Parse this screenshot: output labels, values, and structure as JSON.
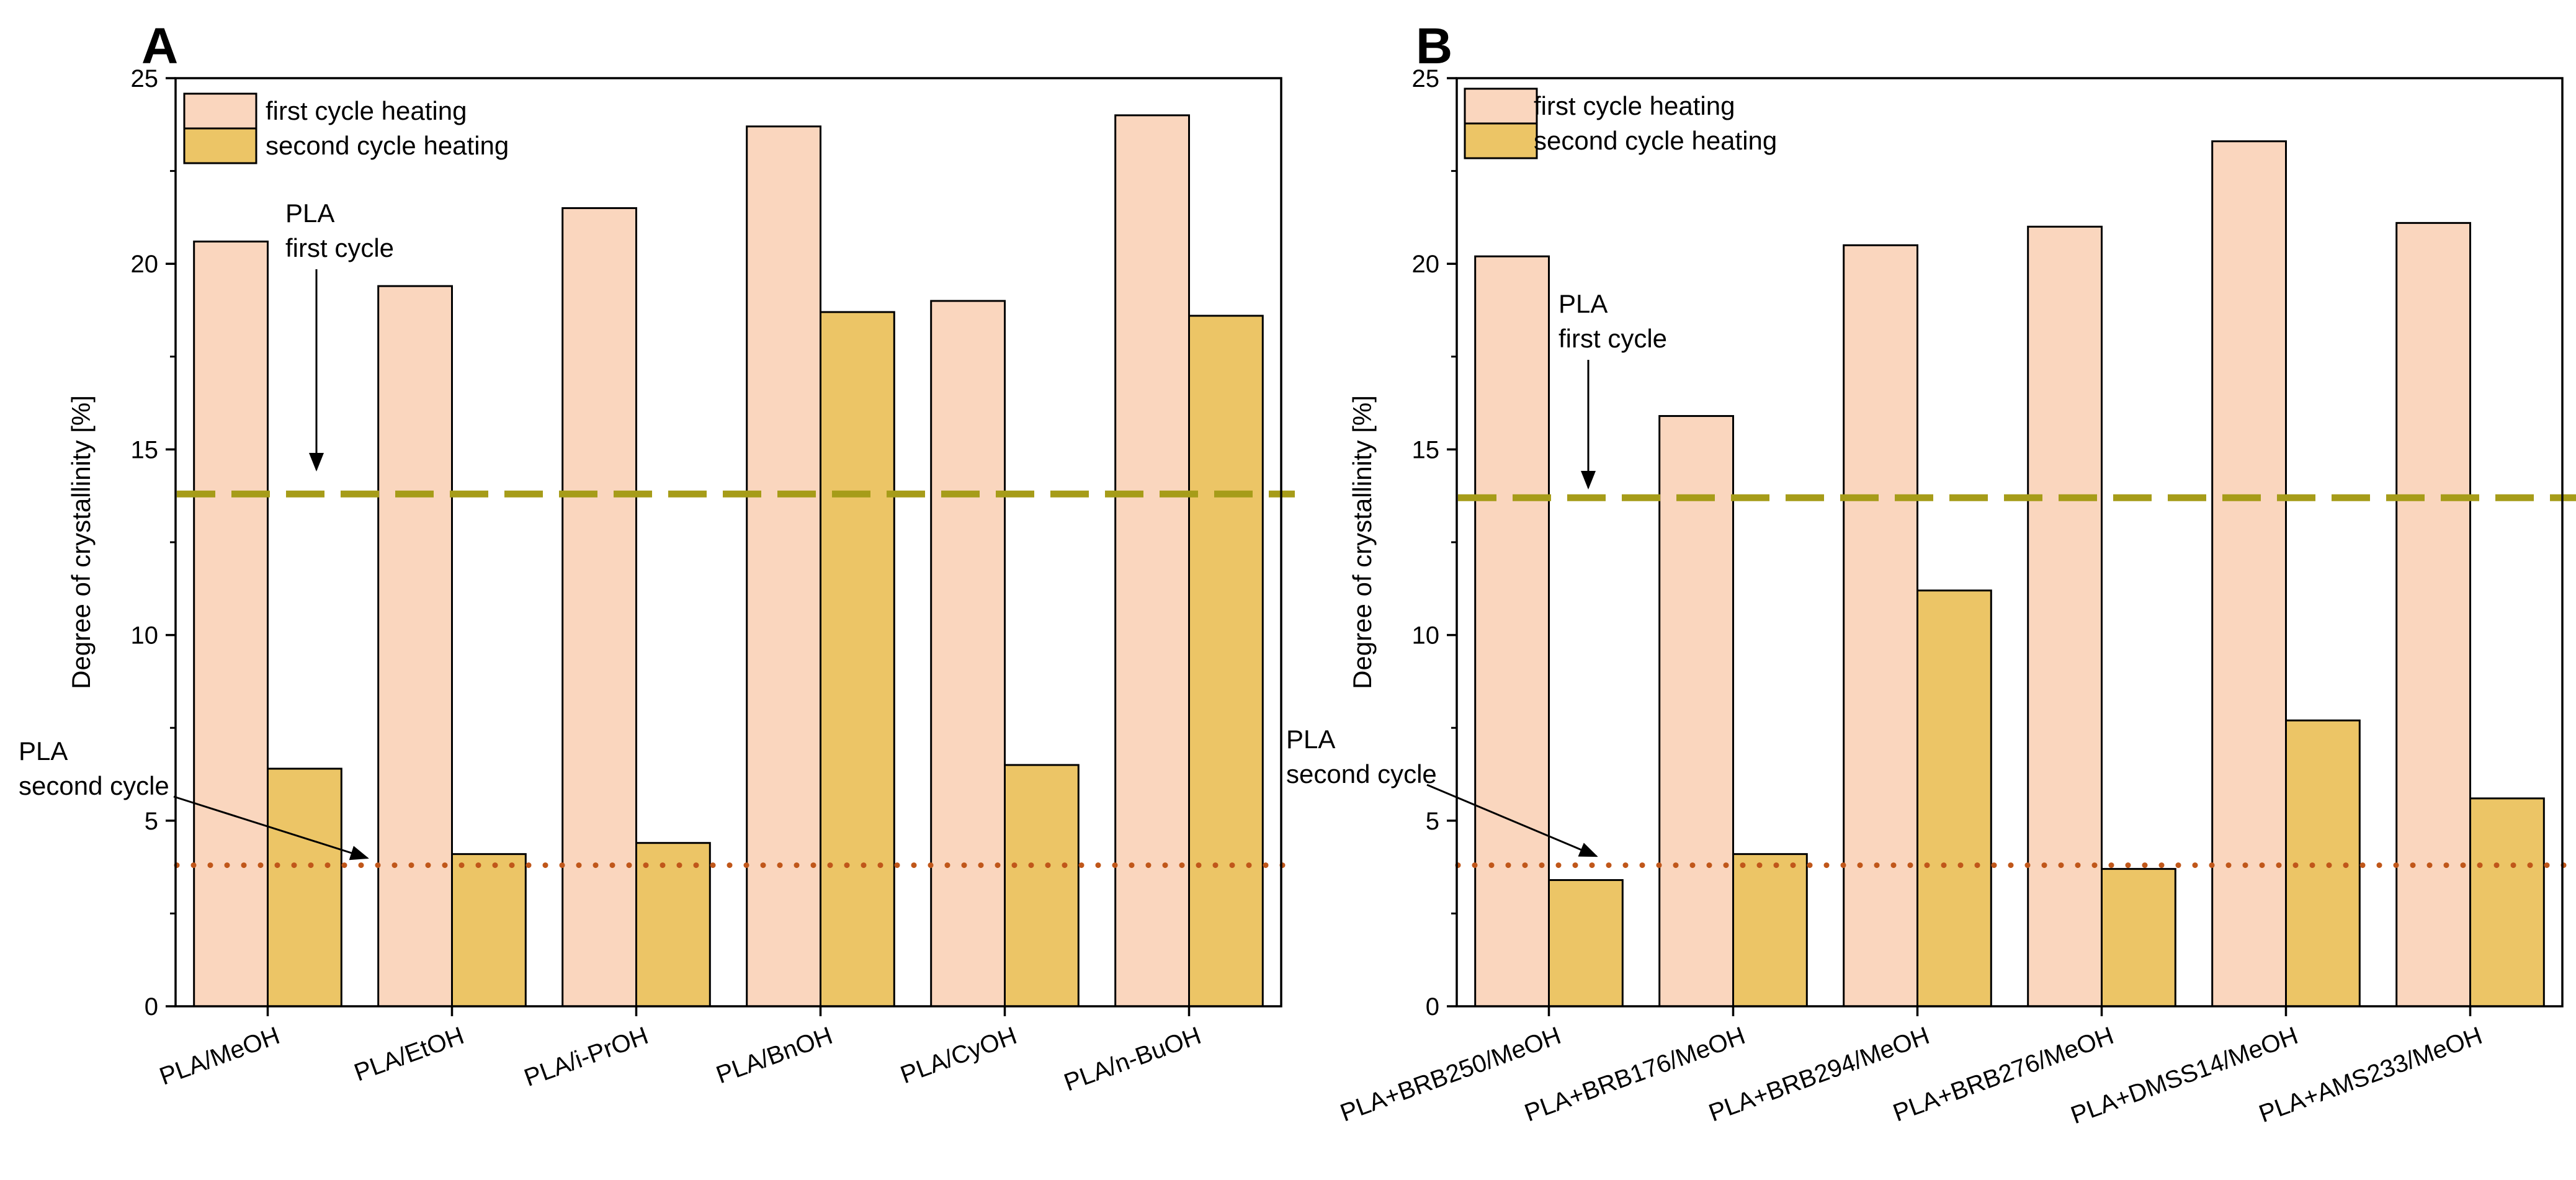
{
  "chart_data": [
    {
      "type": "bar",
      "panel_label": "A",
      "categories": [
        "PLA/MeOH",
        "PLA/EtOH",
        "PLA/i-PrOH",
        "PLA/BnOH",
        "PLA/CyOH",
        "PLA/n-BuOH"
      ],
      "series": [
        {
          "name": "first cycle heating",
          "color": "#FAD6BE",
          "values": [
            20.6,
            19.4,
            21.5,
            23.7,
            19.0,
            24.0
          ]
        },
        {
          "name": "second cycle heating",
          "color": "#ECC566",
          "values": [
            6.4,
            4.1,
            4.4,
            18.7,
            6.5,
            18.6
          ]
        }
      ],
      "ylabel": "Degree of crystallinity [%]",
      "ylim": [
        0,
        25
      ],
      "yticks": [
        "0",
        "5",
        "10",
        "15",
        "20",
        "25"
      ],
      "reference_lines": [
        {
          "name": "PLA first cycle",
          "value": 13.8,
          "style": "dashed",
          "color": "#A69C19"
        },
        {
          "name": "PLA second cycle",
          "value": 3.8,
          "style": "dotted",
          "color": "#C0571A"
        }
      ],
      "annotations": {
        "first": [
          "PLA",
          "first cycle"
        ],
        "second": [
          "PLA",
          "second cycle"
        ]
      },
      "legend_position": "top-left"
    },
    {
      "type": "bar",
      "panel_label": "B",
      "categories": [
        "PLA+BRB250/MeOH",
        "PLA+BRB176/MeOH",
        "PLA+BRB294/MeOH",
        "PLA+BRB276/MeOH",
        "PLA+DMSS14/MeOH",
        "PLA+AMS233/MeOH"
      ],
      "series": [
        {
          "name": "first cycle heating",
          "color": "#FAD6BE",
          "values": [
            20.2,
            15.9,
            20.5,
            21.0,
            23.3,
            21.1
          ]
        },
        {
          "name": "second cycle heating",
          "color": "#ECC566",
          "values": [
            3.4,
            4.1,
            11.2,
            3.7,
            7.7,
            5.6
          ]
        }
      ],
      "ylabel": "Degree of crystallinity [%]",
      "ylim": [
        0,
        25
      ],
      "yticks": [
        "0",
        "5",
        "10",
        "15",
        "20",
        "25"
      ],
      "reference_lines": [
        {
          "name": "PLA first cycle",
          "value": 13.7,
          "style": "dashed",
          "color": "#A69C19"
        },
        {
          "name": "PLA second cycle",
          "value": 3.8,
          "style": "dotted",
          "color": "#C0571A"
        }
      ],
      "annotations": {
        "first": [
          "PLA",
          "first cycle"
        ],
        "second": [
          "PLA",
          "second cycle"
        ]
      },
      "legend_position": "top-left"
    }
  ]
}
